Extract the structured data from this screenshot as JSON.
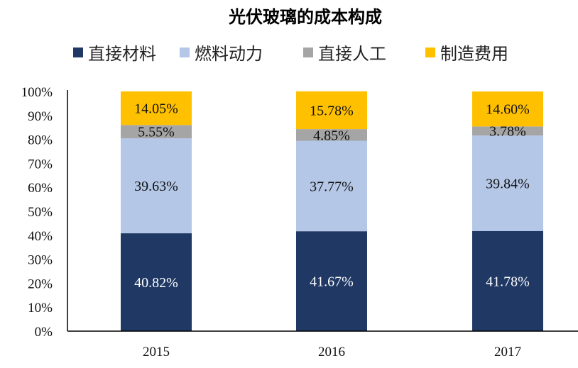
{
  "chart_data": {
    "type": "bar",
    "stacked": true,
    "title": "光伏玻璃的成本构成",
    "categories": [
      "2015",
      "2016",
      "2017"
    ],
    "series": [
      {
        "name": "直接材料",
        "color": "#1f3864",
        "label_color": "#ffffff",
        "values": [
          40.82,
          41.67,
          41.78
        ],
        "labels": [
          "40.82%",
          "41.67%",
          "41.78%"
        ]
      },
      {
        "name": "燃料动力",
        "color": "#b4c7e7",
        "label_color": "#111111",
        "values": [
          39.63,
          37.77,
          39.84
        ],
        "labels": [
          "39.63%",
          "37.77%",
          "39.84%"
        ]
      },
      {
        "name": "直接人工",
        "color": "#a5a5a5",
        "label_color": "#111111",
        "values": [
          5.55,
          4.85,
          3.78
        ],
        "labels": [
          "5.55%",
          "4.85%",
          "3.78%"
        ]
      },
      {
        "name": "制造费用",
        "color": "#ffc000",
        "label_color": "#111111",
        "values": [
          14.05,
          15.78,
          14.6
        ],
        "labels": [
          "14.05%",
          "15.78%",
          "14.60%"
        ]
      }
    ],
    "ylim": [
      0,
      100
    ],
    "yticks": [
      "0%",
      "10%",
      "20%",
      "30%",
      "40%",
      "50%",
      "60%",
      "70%",
      "80%",
      "90%",
      "100%"
    ],
    "grid": false,
    "legend_position": "top"
  }
}
